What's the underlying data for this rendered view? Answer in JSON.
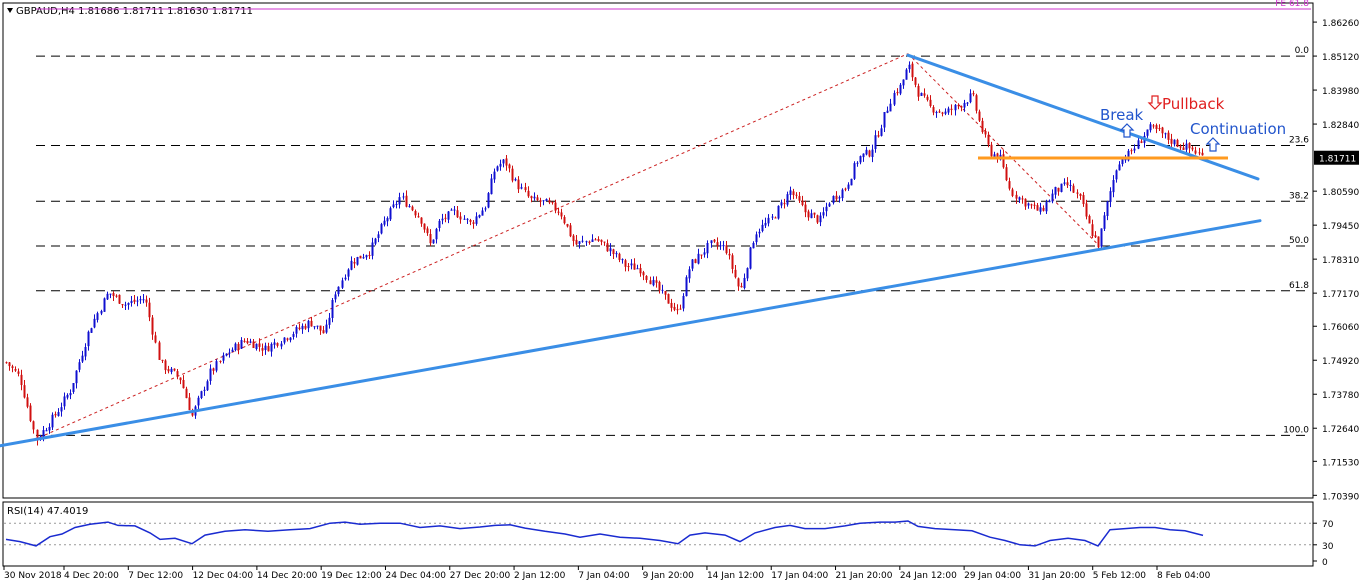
{
  "header": {
    "symbol_line": "GBPAUD,H4  1.81686 1.81711 1.81630 1.81711"
  },
  "colors": {
    "bull": "#1010d0",
    "bear": "#d01010",
    "trendline": "#3a8ee6",
    "support": "#ff9a1f",
    "fib_line": "#000000",
    "fe_line": "#cc33cc",
    "fib_ray": "#cc2222",
    "rsi_line": "#1a2bd0",
    "annotation_blue": "#2255cc",
    "annotation_red": "#e02020"
  },
  "chart_data": [
    {
      "type": "candlestick",
      "title": "GBPAUD,H4",
      "ohlc_readout": {
        "open": 1.81686,
        "high": 1.81711,
        "low": 1.8163,
        "close": 1.81711
      },
      "ylim": [
        1.703,
        1.869
      ],
      "y_ticks": [
        "1.86260",
        "1.85120",
        "1.83980",
        "1.82840",
        "1.81711",
        "1.80590",
        "1.79450",
        "1.78310",
        "1.77170",
        "1.76060",
        "1.74920",
        "1.73780",
        "1.72640",
        "1.71530",
        "1.70390"
      ],
      "current_price_label": "1.81711",
      "x_tick_labels": [
        "30 Nov 2018",
        "4 Dec 20:00",
        "7 Dec 12:00",
        "12 Dec 04:00",
        "14 Dec 20:00",
        "19 Dec 12:00",
        "24 Dec 04:00",
        "27 Dec 20:00",
        "2 Jan 12:00",
        "7 Jan 04:00",
        "9 Jan 20:00",
        "14 Jan 12:00",
        "17 Jan 04:00",
        "21 Jan 20:00",
        "24 Jan 12:00",
        "29 Jan 04:00",
        "31 Jan 20:00",
        "5 Feb 12:00",
        "8 Feb 04:00"
      ],
      "fibonacci_levels": [
        {
          "label": "0.0",
          "value": 1.8512
        },
        {
          "label": "23.6",
          "value": 1.8212
        },
        {
          "label": "38.2",
          "value": 1.8025
        },
        {
          "label": "50.0",
          "value": 1.7875
        },
        {
          "label": "61.8",
          "value": 1.7725
        },
        {
          "label": "100.0",
          "value": 1.724
        }
      ],
      "fe_level": {
        "label": "FE 61.8",
        "value": 1.867
      },
      "support_level": 1.817,
      "trendlines": [
        {
          "name": "rising-support",
          "from": [
            0,
            1.7205
          ],
          "to": [
            1260,
            1.796
          ]
        },
        {
          "name": "falling-resistance",
          "from": [
            908,
            1.8515
          ],
          "to": [
            1258,
            1.81
          ]
        }
      ],
      "fib_rays": [
        {
          "from": [
            34,
            1.7225
          ],
          "to": [
            908,
            1.852
          ]
        },
        {
          "from": [
            908,
            1.852
          ],
          "to": [
            1098,
            1.788
          ]
        }
      ],
      "path_anchors": [
        [
          6,
          1.7485
        ],
        [
          20,
          1.7435
        ],
        [
          36,
          1.7225
        ],
        [
          55,
          1.731
        ],
        [
          70,
          1.739
        ],
        [
          90,
          1.76
        ],
        [
          108,
          1.772
        ],
        [
          125,
          1.768
        ],
        [
          145,
          1.77
        ],
        [
          160,
          1.748
        ],
        [
          180,
          1.743
        ],
        [
          192,
          1.7305
        ],
        [
          210,
          1.745
        ],
        [
          228,
          1.752
        ],
        [
          245,
          1.756
        ],
        [
          265,
          1.753
        ],
        [
          285,
          1.757
        ],
        [
          310,
          1.762
        ],
        [
          325,
          1.758
        ],
        [
          335,
          1.772
        ],
        [
          350,
          1.782
        ],
        [
          370,
          1.786
        ],
        [
          385,
          1.796
        ],
        [
          400,
          1.804
        ],
        [
          420,
          1.797
        ],
        [
          430,
          1.788
        ],
        [
          440,
          1.796
        ],
        [
          455,
          1.799
        ],
        [
          470,
          1.795
        ],
        [
          485,
          1.801
        ],
        [
          495,
          1.814
        ],
        [
          505,
          1.816
        ],
        [
          515,
          1.809
        ],
        [
          530,
          1.803
        ],
        [
          545,
          1.802
        ],
        [
          560,
          1.799
        ],
        [
          575,
          1.788
        ],
        [
          595,
          1.79
        ],
        [
          610,
          1.786
        ],
        [
          625,
          1.781
        ],
        [
          640,
          1.78
        ],
        [
          660,
          1.772
        ],
        [
          678,
          1.765
        ],
        [
          690,
          1.781
        ],
        [
          710,
          1.788
        ],
        [
          725,
          1.787
        ],
        [
          740,
          1.772
        ],
        [
          755,
          1.792
        ],
        [
          770,
          1.796
        ],
        [
          790,
          1.806
        ],
        [
          805,
          1.799
        ],
        [
          820,
          1.796
        ],
        [
          830,
          1.803
        ],
        [
          845,
          1.807
        ],
        [
          858,
          1.817
        ],
        [
          870,
          1.819
        ],
        [
          880,
          1.827
        ],
        [
          892,
          1.838
        ],
        [
          900,
          1.841
        ],
        [
          908,
          1.848
        ],
        [
          918,
          1.839
        ],
        [
          930,
          1.834
        ],
        [
          945,
          1.832
        ],
        [
          960,
          1.835
        ],
        [
          972,
          1.838
        ],
        [
          980,
          1.828
        ],
        [
          990,
          1.819
        ],
        [
          1000,
          1.817
        ],
        [
          1010,
          1.806
        ],
        [
          1025,
          1.802
        ],
        [
          1040,
          1.799
        ],
        [
          1055,
          1.806
        ],
        [
          1068,
          1.808
        ],
        [
          1080,
          1.803
        ],
        [
          1090,
          1.793
        ],
        [
          1098,
          1.788
        ],
        [
          1108,
          1.803
        ],
        [
          1118,
          1.816
        ],
        [
          1128,
          1.818
        ],
        [
          1138,
          1.822
        ],
        [
          1148,
          1.827
        ],
        [
          1158,
          1.826
        ],
        [
          1170,
          1.823
        ],
        [
          1182,
          1.821
        ],
        [
          1192,
          1.82
        ],
        [
          1203,
          1.8171
        ]
      ],
      "annotations": [
        {
          "text": "Break",
          "color": "blue",
          "arrow": "up"
        },
        {
          "text": "Pullback",
          "color": "red",
          "arrow": "down"
        },
        {
          "text": "Continuation",
          "color": "blue",
          "arrow": "up"
        }
      ]
    },
    {
      "type": "line",
      "title": "RSI(14) 47.4019",
      "ylim": [
        0,
        100
      ],
      "y_ticks": [
        "70",
        "30",
        "0"
      ],
      "levels": [
        70,
        30
      ],
      "series": [
        {
          "name": "RSI(14)",
          "values": [
            [
              6,
              40
            ],
            [
              20,
              36
            ],
            [
              36,
              28
            ],
            [
              50,
              45
            ],
            [
              62,
              50
            ],
            [
              75,
              62
            ],
            [
              90,
              68
            ],
            [
              108,
              72
            ],
            [
              118,
              66
            ],
            [
              135,
              65
            ],
            [
              150,
              52
            ],
            [
              160,
              40
            ],
            [
              175,
              42
            ],
            [
              192,
              32
            ],
            [
              205,
              48
            ],
            [
              225,
              55
            ],
            [
              245,
              58
            ],
            [
              268,
              55
            ],
            [
              290,
              58
            ],
            [
              310,
              60
            ],
            [
              330,
              70
            ],
            [
              345,
              72
            ],
            [
              360,
              68
            ],
            [
              380,
              70
            ],
            [
              400,
              70
            ],
            [
              420,
              62
            ],
            [
              440,
              65
            ],
            [
              460,
              60
            ],
            [
              480,
              63
            ],
            [
              495,
              66
            ],
            [
              510,
              67
            ],
            [
              525,
              61
            ],
            [
              545,
              55
            ],
            [
              565,
              50
            ],
            [
              580,
              44
            ],
            [
              600,
              50
            ],
            [
              620,
              44
            ],
            [
              640,
              42
            ],
            [
              660,
              38
            ],
            [
              678,
              32
            ],
            [
              690,
              48
            ],
            [
              705,
              52
            ],
            [
              725,
              48
            ],
            [
              740,
              36
            ],
            [
              755,
              52
            ],
            [
              775,
              62
            ],
            [
              790,
              66
            ],
            [
              805,
              60
            ],
            [
              825,
              60
            ],
            [
              845,
              65
            ],
            [
              860,
              70
            ],
            [
              880,
              72
            ],
            [
              895,
              72
            ],
            [
              908,
              74
            ],
            [
              918,
              64
            ],
            [
              935,
              60
            ],
            [
              955,
              58
            ],
            [
              972,
              56
            ],
            [
              990,
              44
            ],
            [
              1005,
              38
            ],
            [
              1020,
              30
            ],
            [
              1035,
              28
            ],
            [
              1050,
              38
            ],
            [
              1068,
              42
            ],
            [
              1085,
              38
            ],
            [
              1098,
              28
            ],
            [
              1110,
              58
            ],
            [
              1125,
              60
            ],
            [
              1140,
              62
            ],
            [
              1155,
              62
            ],
            [
              1170,
              58
            ],
            [
              1185,
              56
            ],
            [
              1203,
              47.4
            ]
          ]
        }
      ]
    }
  ]
}
